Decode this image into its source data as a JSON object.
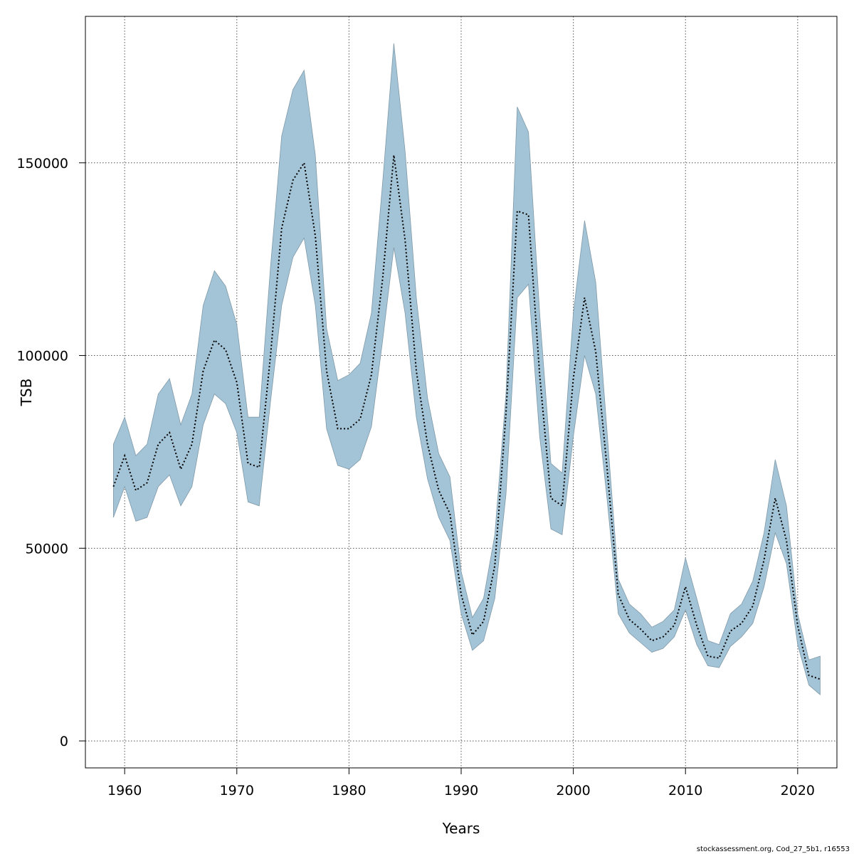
{
  "chart_data": {
    "type": "area",
    "xlabel": "Years",
    "ylabel": "TSB",
    "xlim": [
      1956.5,
      2023.5
    ],
    "ylim": [
      -7000,
      188000
    ],
    "x_ticks": [
      1960,
      1970,
      1980,
      1990,
      2000,
      2010,
      2020
    ],
    "y_ticks": [
      0,
      50000,
      100000,
      150000
    ],
    "grid": true,
    "colors": {
      "band": "#a3c4d6",
      "band_edge": "#7f99a8",
      "line": "#000000",
      "grid": "#555555"
    },
    "x": [
      1959,
      1960,
      1961,
      1962,
      1963,
      1964,
      1965,
      1966,
      1967,
      1968,
      1969,
      1970,
      1971,
      1972,
      1973,
      1974,
      1975,
      1976,
      1977,
      1978,
      1979,
      1980,
      1981,
      1982,
      1983,
      1984,
      1985,
      1986,
      1987,
      1988,
      1989,
      1990,
      1991,
      1992,
      1993,
      1994,
      1995,
      1996,
      1997,
      1998,
      1999,
      2000,
      2001,
      2002,
      2003,
      2004,
      2005,
      2006,
      2007,
      2008,
      2009,
      2010,
      2011,
      2012,
      2013,
      2014,
      2015,
      2016,
      2017,
      2018,
      2019,
      2020,
      2021,
      2022
    ],
    "series": [
      {
        "name": "estimate",
        "values": [
          66000,
          74000,
          65000,
          67000,
          77000,
          80000,
          70500,
          77000,
          96000,
          104000,
          101500,
          93000,
          72000,
          71000,
          100000,
          133000,
          145500,
          150000,
          131000,
          96000,
          81000,
          81000,
          83500,
          95000,
          120000,
          152000,
          130000,
          96000,
          77000,
          65000,
          59000,
          38000,
          27500,
          31000,
          45500,
          85000,
          137500,
          136500,
          95000,
          63000,
          61000,
          94000,
          115000,
          101000,
          71000,
          38000,
          31500,
          29000,
          26000,
          27000,
          30000,
          40000,
          30000,
          22000,
          21500,
          28500,
          30500,
          35000,
          47000,
          63000,
          52000,
          30000,
          17000,
          16000
        ]
      },
      {
        "name": "lower",
        "values": [
          58000,
          66000,
          57000,
          58000,
          66000,
          69000,
          61000,
          66000,
          82000,
          90000,
          87500,
          80000,
          62000,
          61000,
          88000,
          113000,
          125500,
          130500,
          113000,
          81000,
          71500,
          70500,
          73000,
          81500,
          104000,
          128000,
          111000,
          84000,
          68000,
          58000,
          52000,
          33000,
          23500,
          26000,
          37000,
          64000,
          115000,
          118500,
          79000,
          55000,
          53500,
          79000,
          100000,
          90000,
          63000,
          33000,
          28000,
          25500,
          23000,
          24000,
          27000,
          34000,
          25000,
          19500,
          19000,
          24500,
          27000,
          30500,
          40000,
          54000,
          46000,
          25000,
          14500,
          12000
        ]
      },
      {
        "name": "upper",
        "values": [
          77000,
          84000,
          74000,
          77000,
          90000,
          94000,
          82000,
          90000,
          113000,
          122000,
          118000,
          108000,
          84000,
          84000,
          123000,
          157000,
          169000,
          174000,
          152000,
          107000,
          93500,
          95000,
          98000,
          111000,
          145000,
          181000,
          153000,
          115000,
          89000,
          74500,
          68500,
          44000,
          32000,
          37000,
          53500,
          90000,
          164500,
          158000,
          111000,
          72000,
          69500,
          111000,
          135000,
          119000,
          80500,
          42000,
          35500,
          33000,
          29500,
          31000,
          34000,
          47500,
          37000,
          26000,
          25000,
          33000,
          35500,
          41500,
          54000,
          73000,
          61000,
          33000,
          21000,
          22000
        ]
      }
    ]
  },
  "footer": {
    "text": "stockassessment.org, Cod_27_5b1, r16553"
  }
}
